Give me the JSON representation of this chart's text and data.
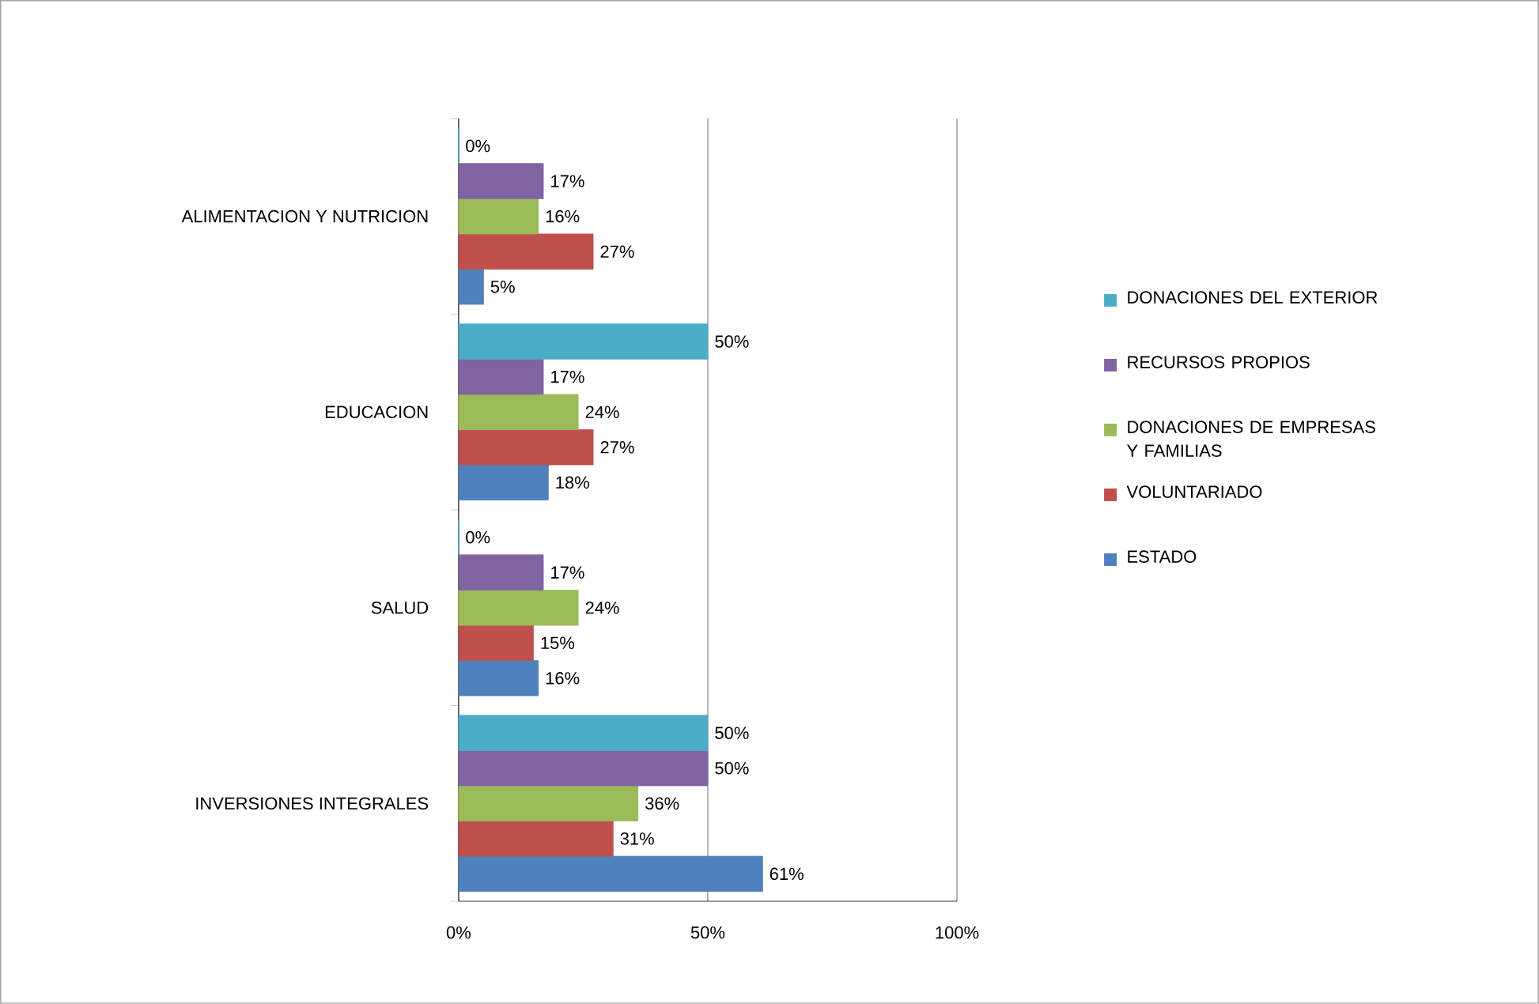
{
  "chart_data": {
    "type": "bar",
    "orientation": "horizontal",
    "categories": [
      "ALIMENTACION Y NUTRICION",
      "EDUCACION",
      "SALUD",
      "INVERSIONES  INTEGRALES"
    ],
    "series": [
      {
        "name": "ESTADO",
        "color": "#4f81bd",
        "values": [
          5,
          18,
          16,
          61
        ],
        "value_labels": [
          "5%",
          "18%",
          "16%",
          "61%"
        ]
      },
      {
        "name": "VOLUNTARIADO",
        "color": "#c0504d",
        "values": [
          27,
          27,
          15,
          31
        ],
        "value_labels": [
          "27%",
          "27%",
          "15%",
          "31%"
        ]
      },
      {
        "name": "DONACIONES DE  EMPRESAS Y FAMILIAS",
        "color": "#9bbb59",
        "values": [
          16,
          24,
          24,
          36
        ],
        "value_labels": [
          "16%",
          "24%",
          "24%",
          "36%"
        ]
      },
      {
        "name": "RECURSOS    PROPIOS",
        "color": "#8064a2",
        "values": [
          17,
          17,
          17,
          50
        ],
        "value_labels": [
          "17%",
          "17%",
          "17%",
          "50%"
        ]
      },
      {
        "name": "DONACIONES    DEL EXTERIOR",
        "color": "#4bacc6",
        "values": [
          0,
          50,
          0,
          50
        ],
        "value_labels": [
          "0%",
          "50%",
          "0%",
          "50%"
        ]
      }
    ],
    "xlim": [
      0,
      100
    ],
    "xticks": [
      {
        "value": 0,
        "label": "0%"
      },
      {
        "value": 50,
        "label": "50%"
      },
      {
        "value": 100,
        "label": "100%"
      }
    ],
    "grid": "x",
    "legend": "right"
  }
}
